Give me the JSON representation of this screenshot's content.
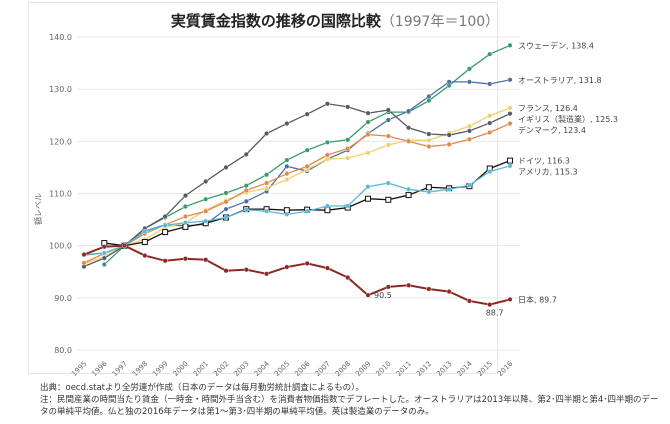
{
  "chart_data": {
    "type": "line",
    "title": "実質賃金指数の推移の国際比較",
    "subtitle": "（1997年＝100）",
    "ylabel": "額レベル",
    "xlabel": "",
    "ylim": [
      80,
      140
    ],
    "yticks": [
      "80.0",
      "90.0",
      "100.0",
      "110.0",
      "120.0",
      "130.0",
      "140.0"
    ],
    "x": [
      "1995",
      "1996",
      "1997",
      "1998",
      "1999",
      "2000",
      "2001",
      "2002",
      "2003",
      "2004",
      "2005",
      "2006",
      "2007",
      "2008",
      "2009",
      "2010",
      "2011",
      "2012",
      "2013",
      "2014",
      "2015",
      "2016"
    ],
    "grid": true,
    "series": [
      {
        "name": "スウェーデン",
        "label": "スウェーデン, 138.4",
        "color": "#3c9a6a",
        "values": [
          null,
          96.4,
          100,
          103.3,
          105.4,
          107.5,
          108.9,
          110.1,
          111.5,
          113.6,
          116.4,
          118.3,
          119.8,
          120.3,
          123.7,
          125.6,
          125.6,
          127.8,
          130.7,
          133.9,
          136.7,
          138.4
        ]
      },
      {
        "name": "オーストラリア",
        "label": "オーストラリア, 131.8",
        "color": "#4a6fa5",
        "values": [
          98.2,
          98.6,
          100,
          102.8,
          104.0,
          103.8,
          104.1,
          107.0,
          108.5,
          110.4,
          115.2,
          114.3,
          116.6,
          118.3,
          121.5,
          124.1,
          125.8,
          128.6,
          131.4,
          131.4,
          131.0,
          131.8
        ]
      },
      {
        "name": "フランス",
        "label": "フランス, 126.4",
        "color": "#f0cf70",
        "values": [
          96.5,
          97.9,
          100,
          101.2,
          103.5,
          104.4,
          106.8,
          108.7,
          110.2,
          111.0,
          112.7,
          114.6,
          116.6,
          116.8,
          117.8,
          119.3,
          120.2,
          120.2,
          121.6,
          122.9,
          124.9,
          126.4
        ]
      },
      {
        "name": "イギリス（製造業）",
        "label": "イギリス（製造業）, 125.3",
        "color": "#555b63",
        "values": [
          96.0,
          97.6,
          100,
          103.3,
          105.6,
          109.6,
          112.3,
          115.0,
          117.5,
          121.5,
          123.4,
          125.2,
          127.2,
          126.6,
          125.4,
          126.0,
          122.6,
          121.4,
          121.2,
          122.0,
          123.5,
          125.3
        ]
      },
      {
        "name": "デンマーク",
        "label": "デンマーク, 123.4",
        "color": "#e08a4a",
        "values": [
          96.7,
          98.5,
          100,
          102.3,
          104.0,
          105.6,
          106.6,
          108.4,
          110.6,
          112.0,
          113.8,
          115.2,
          117.4,
          118.6,
          121.3,
          121.0,
          120.0,
          119.0,
          119.4,
          120.4,
          121.7,
          123.4
        ]
      },
      {
        "name": "ドイツ",
        "label": "ドイツ, 116.3",
        "color": "#111111",
        "values": [
          null,
          100.5,
          100,
          100.7,
          102.6,
          103.6,
          104.3,
          105.4,
          107.0,
          107.0,
          106.8,
          106.9,
          106.8,
          107.3,
          109.0,
          108.8,
          109.7,
          111.2,
          111.0,
          111.4,
          114.8,
          116.3
        ]
      },
      {
        "name": "アメリカ",
        "label": "アメリカ, 115.3",
        "color": "#5bb8d6",
        "values": [
          98.3,
          98.6,
          100,
          102.7,
          103.9,
          104.4,
          104.7,
          105.4,
          106.9,
          106.6,
          106.0,
          106.6,
          107.6,
          107.6,
          111.3,
          112.0,
          110.8,
          110.3,
          110.8,
          111.6,
          114.2,
          115.3
        ]
      },
      {
        "name": "日本",
        "label": "日本, 89.7",
        "color": "#8b2a24",
        "values": [
          98.3,
          99.8,
          100,
          98.1,
          97.1,
          97.5,
          97.3,
          95.2,
          95.4,
          94.6,
          95.9,
          96.6,
          95.7,
          93.9,
          90.5,
          92.1,
          92.4,
          91.7,
          91.2,
          89.4,
          88.7,
          89.7
        ]
      }
    ],
    "annotations": [
      {
        "text": "90.5",
        "x": "2009",
        "y": 90.5
      },
      {
        "text": "88.7",
        "x": "2015",
        "y": 88.7
      }
    ]
  },
  "notes": {
    "source": "出典：oecd.statより全労連が作成（日本のデータは毎月勤労統計調査によるもの）。",
    "note": "注：民間産業の時間当たり賃金（一時金・時間外手当含む）を消費者物価指数でデフレートした。オーストラリアは2013年以降、第2･四半期と第4･四半期のデータの単純平均値。仏と独の2016年データは第1～第3･四半期の単純平均値。英は製造業のデータのみ。"
  }
}
